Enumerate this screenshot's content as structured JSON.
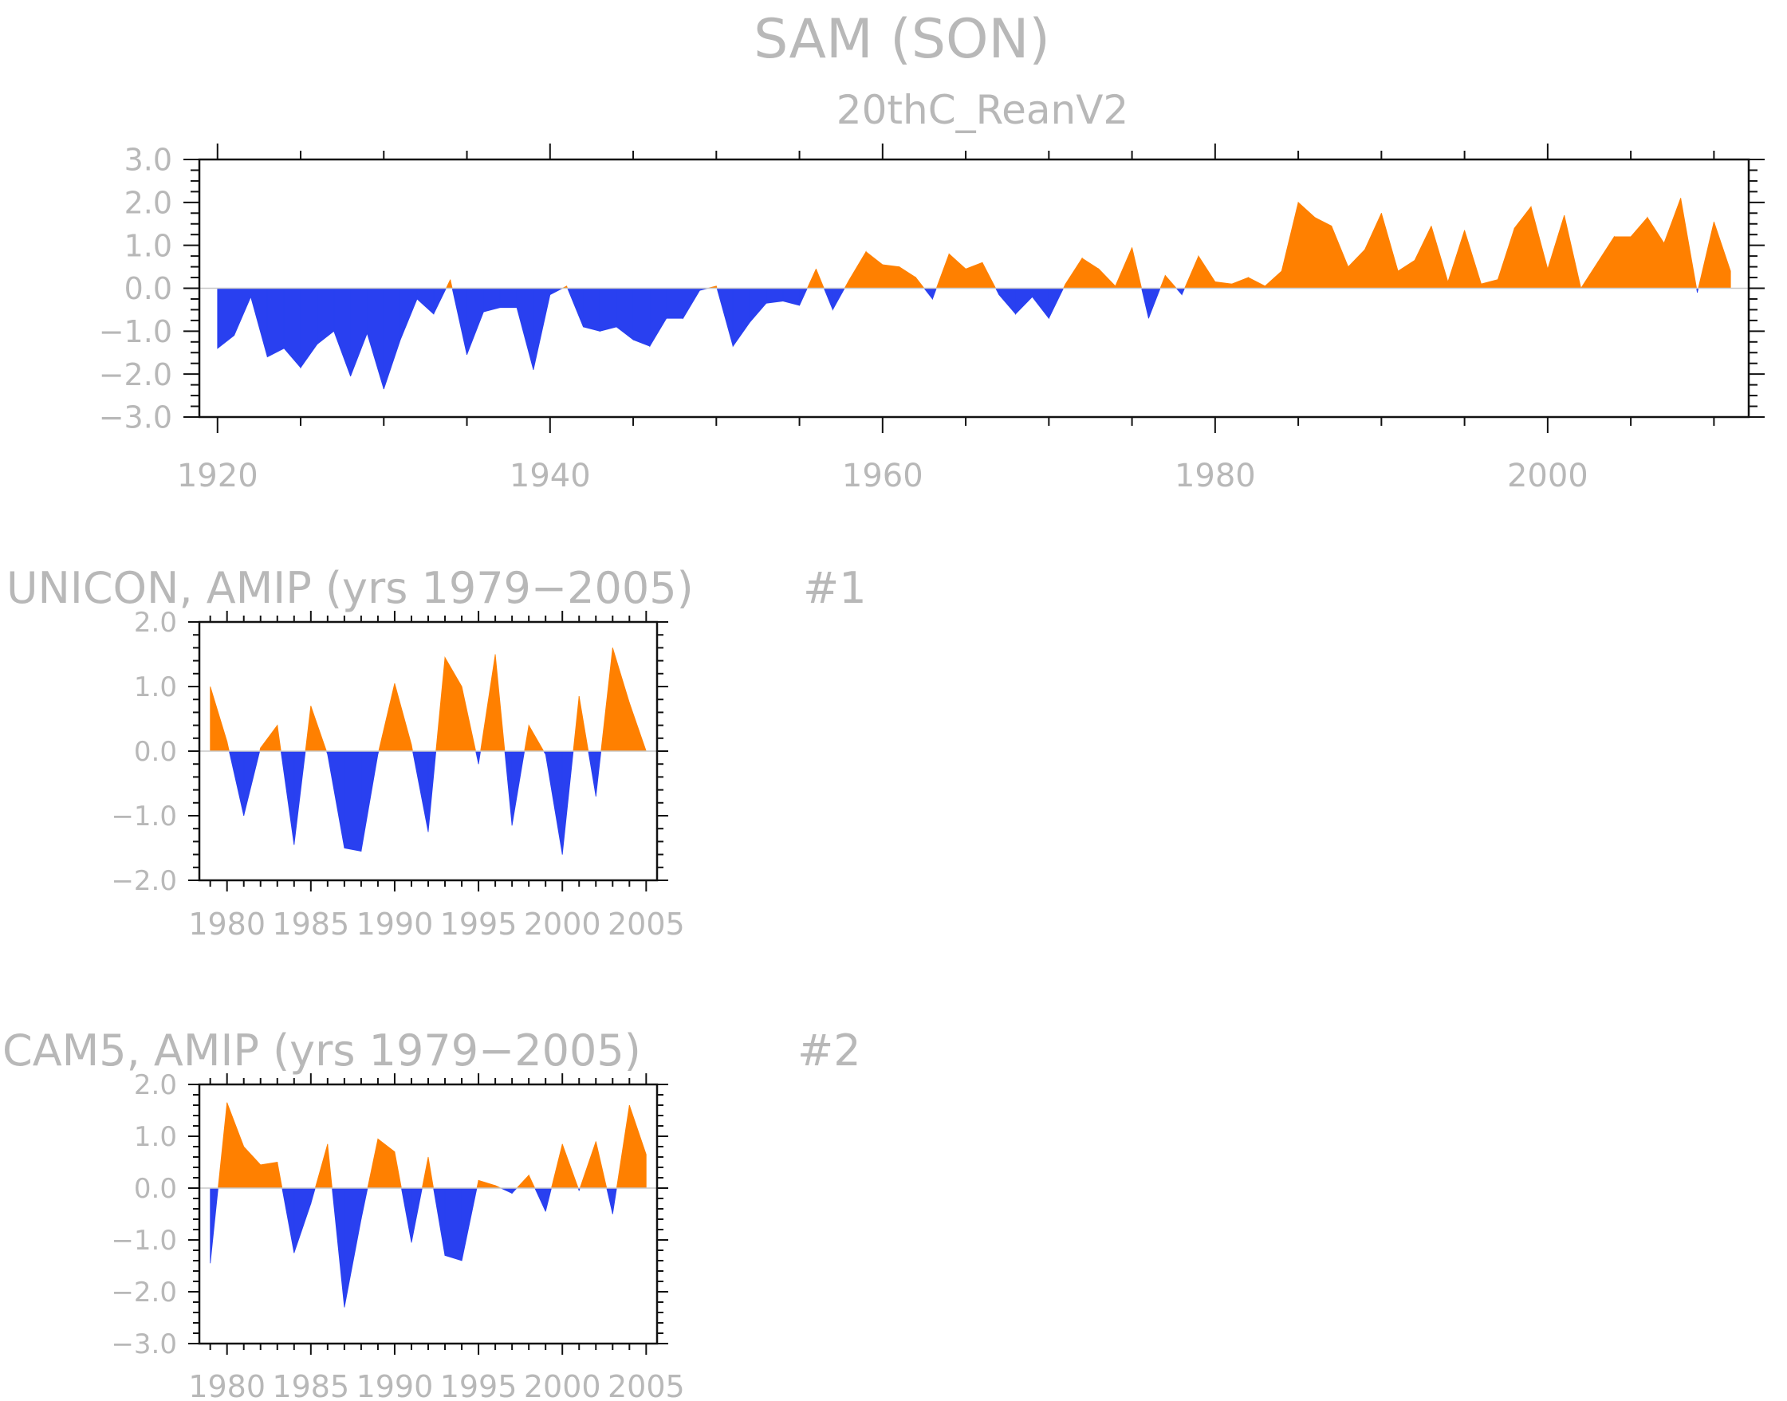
{
  "page_title": "SAM (SON)",
  "colors": {
    "positive": "#ff8000",
    "negative": "#2940f0",
    "frame": "#111111",
    "text": "#b8b8b8"
  },
  "chart_data": [
    {
      "type": "area",
      "subtitle": "20thC_ReanV2",
      "left_label": "",
      "right_label": "",
      "xlim": [
        1920,
        2011
      ],
      "ylim": [
        -3.0,
        3.0
      ],
      "yticks": [
        3.0,
        2.0,
        1.0,
        0.0,
        -1.0,
        -2.0,
        -3.0
      ],
      "ytick_labels": [
        "3.0",
        "2.0",
        "1.0",
        "0.0",
        "−1.0",
        "−2.0",
        "−3.0"
      ],
      "xticks": [
        1920,
        1940,
        1960,
        1980,
        2000
      ],
      "xtick_labels": [
        "1920",
        "1940",
        "1960",
        "1980",
        "2000"
      ],
      "grid": false,
      "x": [
        1920,
        1921,
        1922,
        1923,
        1924,
        1925,
        1926,
        1927,
        1928,
        1929,
        1930,
        1931,
        1932,
        1933,
        1934,
        1935,
        1936,
        1937,
        1938,
        1939,
        1940,
        1941,
        1942,
        1943,
        1944,
        1945,
        1946,
        1947,
        1948,
        1949,
        1950,
        1951,
        1952,
        1953,
        1954,
        1955,
        1956,
        1957,
        1958,
        1959,
        1960,
        1961,
        1962,
        1963,
        1964,
        1965,
        1966,
        1967,
        1968,
        1969,
        1970,
        1971,
        1972,
        1973,
        1974,
        1975,
        1976,
        1977,
        1978,
        1979,
        1980,
        1981,
        1982,
        1983,
        1984,
        1985,
        1986,
        1987,
        1988,
        1989,
        1990,
        1991,
        1992,
        1993,
        1994,
        1995,
        1996,
        1997,
        1998,
        1999,
        2000,
        2001,
        2002,
        2003,
        2004,
        2005,
        2006,
        2007,
        2008,
        2009,
        2010,
        2011
      ],
      "y": [
        -1.4,
        -1.1,
        -0.2,
        -1.6,
        -1.4,
        -1.85,
        -1.3,
        -1.0,
        -2.05,
        -1.05,
        -2.35,
        -1.2,
        -0.25,
        -0.6,
        0.2,
        -1.55,
        -0.55,
        -0.45,
        -0.45,
        -1.9,
        -0.15,
        0.05,
        -0.9,
        -1.0,
        -0.9,
        -1.2,
        -1.35,
        -0.7,
        -0.7,
        -0.05,
        0.05,
        -1.35,
        -0.8,
        -0.35,
        -0.3,
        -0.4,
        0.45,
        -0.5,
        0.2,
        0.85,
        0.55,
        0.5,
        0.25,
        -0.25,
        0.8,
        0.45,
        0.6,
        -0.15,
        -0.6,
        -0.2,
        -0.7,
        0.1,
        0.7,
        0.45,
        0.05,
        0.95,
        -0.7,
        0.3,
        -0.15,
        0.75,
        0.15,
        0.1,
        0.25,
        0.05,
        0.4,
        2.0,
        1.65,
        1.45,
        0.5,
        0.9,
        1.75,
        0.4,
        0.65,
        1.45,
        0.15,
        1.35,
        0.1,
        0.2,
        1.4,
        1.9,
        0.45,
        1.7,
        0.0,
        0.6,
        1.2,
        1.2,
        1.65,
        1.05,
        2.1,
        -0.1,
        1.55,
        0.4
      ]
    },
    {
      "type": "area",
      "subtitle": "",
      "left_label": "UNICON, AMIP (yrs 1979−2005)",
      "right_label": "#1",
      "xlim": [
        1979,
        2005
      ],
      "ylim": [
        -2.0,
        2.0
      ],
      "yticks": [
        2.0,
        1.0,
        0.0,
        -1.0,
        -2.0
      ],
      "ytick_labels": [
        "2.0",
        "1.0",
        "0.0",
        "−1.0",
        "−2.0"
      ],
      "xticks": [
        1980,
        1985,
        1990,
        1995,
        2000,
        2005
      ],
      "xtick_labels": [
        "1980",
        "1985",
        "1990",
        "1995",
        "2000",
        "2005"
      ],
      "grid": false,
      "x": [
        1979,
        1980,
        1981,
        1982,
        1983,
        1984,
        1985,
        1986,
        1987,
        1988,
        1989,
        1990,
        1991,
        1992,
        1993,
        1994,
        1995,
        1996,
        1997,
        1998,
        1999,
        2000,
        2001,
        2002,
        2003,
        2004,
        2005
      ],
      "y": [
        1.0,
        0.15,
        -1.0,
        0.05,
        0.4,
        -1.45,
        0.7,
        -0.05,
        -1.5,
        -1.55,
        -0.05,
        1.05,
        0.1,
        -1.25,
        1.45,
        1.0,
        -0.2,
        1.5,
        -1.15,
        0.4,
        -0.05,
        -1.6,
        0.85,
        -0.7,
        1.6,
        0.75,
        0.0
      ]
    },
    {
      "type": "area",
      "subtitle": "",
      "left_label": "CAM5, AMIP (yrs 1979−2005)",
      "right_label": "#2",
      "xlim": [
        1979,
        2005
      ],
      "ylim": [
        -3.0,
        2.0
      ],
      "yticks": [
        2.0,
        1.0,
        0.0,
        -1.0,
        -2.0,
        -3.0
      ],
      "ytick_labels": [
        "2.0",
        "1.0",
        "0.0",
        "−1.0",
        "−2.0",
        "−3.0"
      ],
      "xticks": [
        1980,
        1985,
        1990,
        1995,
        2000,
        2005
      ],
      "xtick_labels": [
        "1980",
        "1985",
        "1990",
        "1995",
        "2000",
        "2005"
      ],
      "grid": false,
      "x": [
        1979,
        1980,
        1981,
        1982,
        1983,
        1984,
        1985,
        1986,
        1987,
        1988,
        1989,
        1990,
        1991,
        1992,
        1993,
        1994,
        1995,
        1996,
        1997,
        1998,
        1999,
        2000,
        2001,
        2002,
        2003,
        2004,
        2005
      ],
      "y": [
        -1.45,
        1.65,
        0.8,
        0.45,
        0.5,
        -1.25,
        -0.3,
        0.85,
        -2.3,
        -0.6,
        0.95,
        0.7,
        -1.05,
        0.6,
        -1.3,
        -1.4,
        0.15,
        0.05,
        -0.1,
        0.25,
        -0.45,
        0.85,
        -0.05,
        0.9,
        -0.5,
        1.6,
        0.65
      ]
    }
  ]
}
